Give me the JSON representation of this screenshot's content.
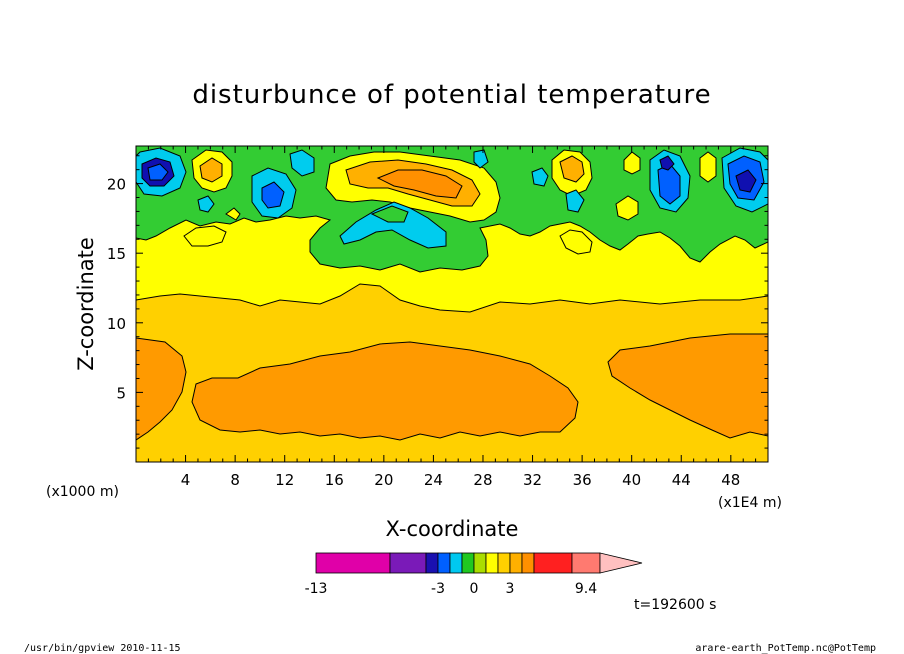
{
  "chart_data": {
    "type": "heatmap",
    "title": "disturbunce of potential temperature",
    "xlabel": "X-coordinate",
    "ylabel": "Z-coordinate",
    "x_unit": "(x1E4 m)",
    "y_unit": "(x1000 m)",
    "xlim": [
      0,
      51
    ],
    "ylim": [
      0,
      22.7
    ],
    "x_ticks": [
      4,
      8,
      12,
      16,
      20,
      24,
      28,
      32,
      36,
      40,
      44,
      48
    ],
    "y_ticks": [
      5,
      10,
      15,
      20
    ],
    "colorbar": {
      "colors": [
        "#e000a8",
        "#7a1ab8",
        "#1a10b0",
        "#0060ff",
        "#00c8f0",
        "#20c820",
        "#aadd00",
        "#ffff00",
        "#ffd000",
        "#ffb000",
        "#ff9000",
        "#ff2020",
        "#ff7a70",
        "#ffc0c0"
      ],
      "labels": [
        "-13",
        "-3",
        "0",
        "3",
        "9.4"
      ],
      "extend": "max"
    },
    "time_label": "t=192600 s"
  },
  "footer": {
    "left": "/usr/bin/gpview   2010-11-15",
    "right": "arare-earth_PotTemp.nc@PotTemp"
  }
}
